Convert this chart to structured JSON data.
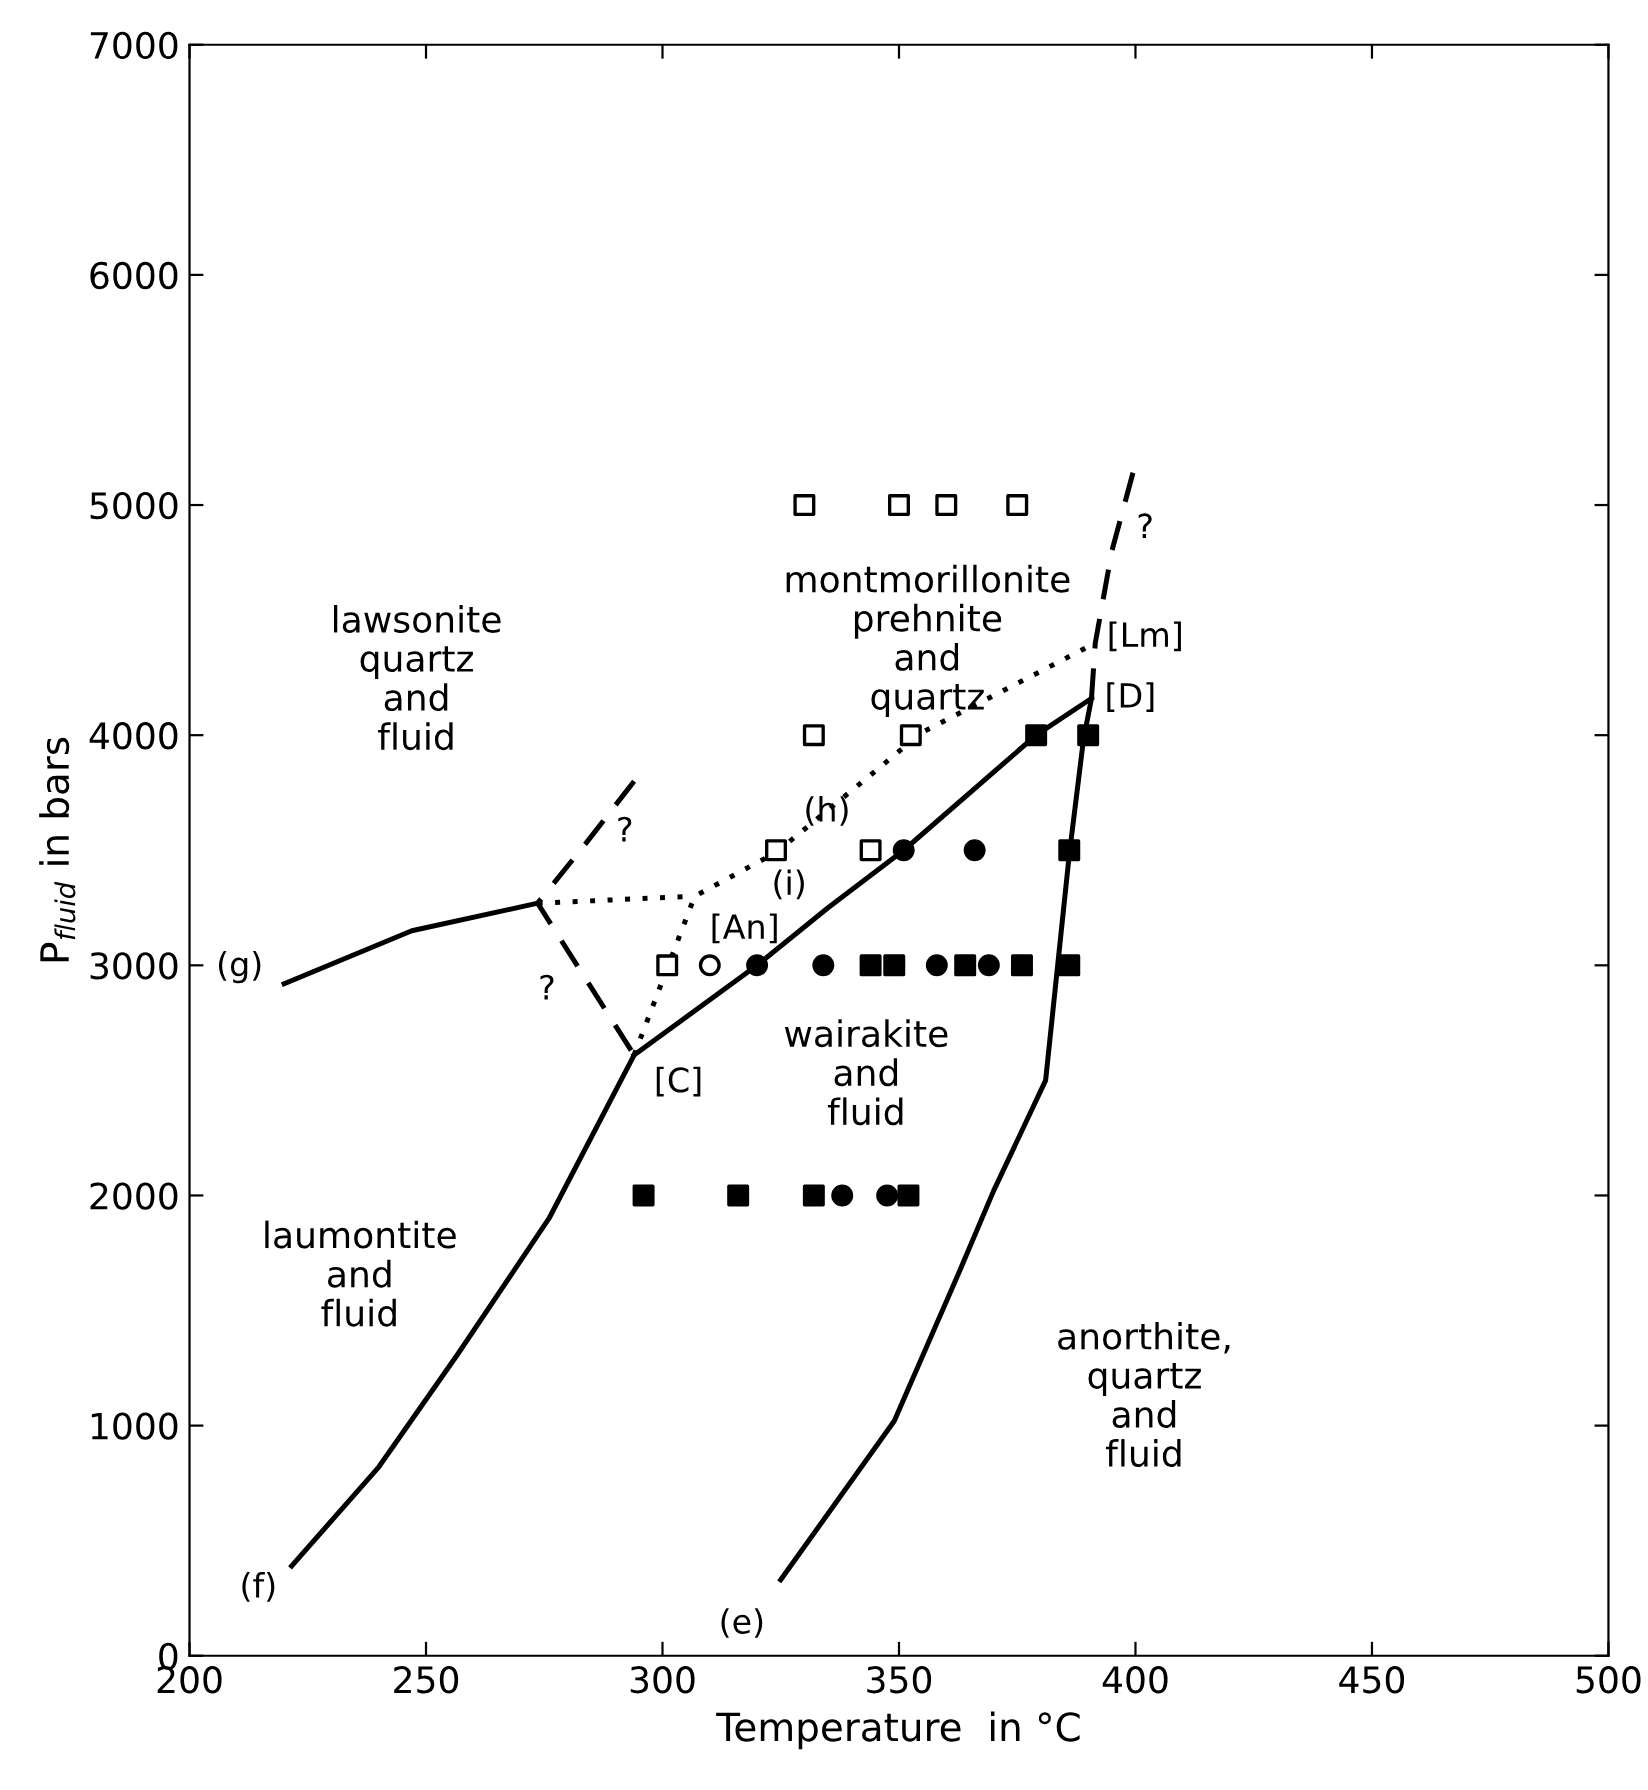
{
  "chart_data": {
    "type": "scatter",
    "xlabel": "Temperature  in °C",
    "ylabel": "P$_{fluid}$ in bars",
    "xlim": [
      200,
      500
    ],
    "ylim": [
      0,
      7000
    ],
    "xticks": [
      200,
      250,
      300,
      350,
      400,
      450,
      500
    ],
    "yticks": [
      0,
      1000,
      2000,
      3000,
      4000,
      5000,
      6000,
      7000
    ],
    "grid": false,
    "legend": false,
    "series": [
      {
        "type": "line",
        "line_style": "solid",
        "color": "#000000",
        "x": [
          221.6,
          240,
          256.7,
          276,
          294
        ],
        "values": [
          390,
          820,
          1310,
          1900,
          2610
        ]
      },
      {
        "type": "line",
        "line_style": "solid",
        "color": "#000000",
        "x": [
          294,
          320,
          335,
          351,
          379,
          390.7
        ],
        "values": [
          2610,
          3000,
          3250,
          3500,
          4000,
          4160
        ]
      },
      {
        "type": "line",
        "line_style": "solid",
        "color": "#000000",
        "x": [
          325,
          349,
          363,
          370,
          381,
          386,
          389,
          390.7
        ],
        "values": [
          330,
          1020,
          1680,
          2020,
          2500,
          3480,
          3980,
          4160
        ]
      },
      {
        "type": "line",
        "line_style": "solid",
        "color": "#000000",
        "x": [
          220,
          247,
          273.6
        ],
        "values": [
          2920,
          3150,
          3270
        ]
      },
      {
        "type": "line",
        "line_style": "dashed",
        "color": "#000000",
        "x": [
          294,
          283.8,
          273.6,
          283.8,
          294
        ],
        "values": [
          3800,
          3530,
          3270,
          2940,
          2610
        ]
      },
      {
        "type": "line",
        "line_style": "dashed",
        "color": "#000000",
        "x": [
          390.7,
          391.5,
          395,
          400
        ],
        "values": [
          4160,
          4400,
          4800,
          5180
        ]
      },
      {
        "type": "line",
        "line_style": "dotted",
        "color": "#000000",
        "x": [
          273.6,
          306.8
        ],
        "values": [
          3270,
          3300
        ]
      },
      {
        "type": "line",
        "line_style": "dotted",
        "color": "#000000",
        "x": [
          294,
          306.8,
          324,
          343,
          354.7,
          391.5
        ],
        "values": [
          2610,
          3300,
          3490,
          3810,
          4010,
          4400
        ]
      },
      {
        "marker": "square",
        "color": "#ffffff",
        "x": [
          330,
          350,
          360,
          375,
          332,
          352.5,
          324,
          344,
          301
        ],
        "values": [
          5000,
          5000,
          5000,
          5000,
          4000,
          4000,
          3500,
          3500,
          3000
        ]
      },
      {
        "marker": "square",
        "color": "#000000",
        "x": [
          379,
          344,
          390,
          386,
          349,
          364,
          376,
          386,
          296,
          316,
          332,
          352
        ],
        "values": [
          4000,
          3000,
          4000,
          3500,
          3000,
          3000,
          3000,
          3000,
          2000,
          2000,
          2000,
          2000
        ]
      },
      {
        "marker": "circle",
        "color": "#ffffff",
        "x": [
          310
        ],
        "values": [
          3000
        ]
      },
      {
        "marker": "circle",
        "color": "#000000",
        "x": [
          351,
          320,
          369,
          366,
          334,
          358,
          338,
          347.5
        ],
        "values": [
          3500,
          3000,
          3000,
          3500,
          3000,
          3000,
          2000,
          2000
        ]
      }
    ],
    "annotations": [
      "lawsonite\nquartz\nand\nfluid",
      "laumontite\nand\nfluid",
      "montmorillonite\nprehnite\nand\nquartz",
      "wairakite\nand\nfluid",
      "anorthite,\nquartz\nand\nfluid",
      {
        "text": "(g)",
        "x": 220,
        "y": 2920
      },
      {
        "text": "(f)",
        "x": 221.6,
        "y": 390
      },
      {
        "text": "(e)",
        "x": 325,
        "y": 330
      },
      {
        "text": "[C]",
        "x": 294,
        "y": 2610
      },
      {
        "text": "[An]",
        "x": 306.8,
        "y": 3300
      },
      {
        "text": "(i)",
        "x": 335,
        "y": 3250
      },
      {
        "text": "(h)",
        "x": 343,
        "y": 3810
      },
      {
        "text": "[D]",
        "x": 390.7,
        "y": 4160
      },
      {
        "text": "[Lm]",
        "x": 391.5,
        "y": 4400
      },
      {
        "text": "?",
        "x": 395,
        "y": 4800
      },
      {
        "text": "?",
        "x": 283.8,
        "y": 3530
      },
      {
        "text": "?",
        "x": 283.8,
        "y": 2940
      }
    ]
  }
}
